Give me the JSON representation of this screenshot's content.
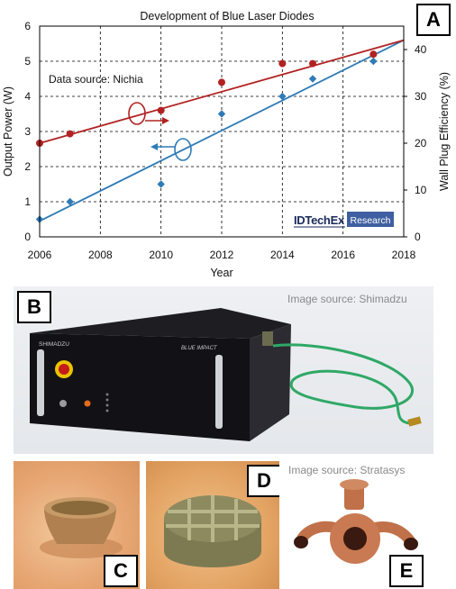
{
  "panels": {
    "a": {
      "label": "A"
    },
    "b": {
      "label": "B",
      "source": "Image source: Shimadzu",
      "device": {
        "brand": "SHIMADZU",
        "model": "BLUE IMPACT"
      }
    },
    "c": {
      "label": "C"
    },
    "d": {
      "label": "D"
    },
    "e": {
      "label": "E",
      "source": "Image source: Stratasys"
    }
  },
  "chart_data": {
    "type": "line",
    "title": "Development of Blue Laser Diodes",
    "xlabel": "Year",
    "ylabel": "Output Power (W)",
    "y2label": "Wall Plug Efficiency (%)",
    "xlim": [
      2006,
      2018
    ],
    "ylim": [
      0,
      6
    ],
    "y2lim": [
      0,
      45
    ],
    "xticks": [
      "2006",
      "2008",
      "2010",
      "2012",
      "2014",
      "2016",
      "2018"
    ],
    "yticks": [
      "0",
      "1",
      "2",
      "3",
      "4",
      "5",
      "6"
    ],
    "y2ticks": [
      "0",
      "10",
      "20",
      "30",
      "40"
    ],
    "grid": true,
    "annotation": "Data source: Nichia",
    "logo": {
      "brand": "IDTechEx",
      "tag": "Research"
    },
    "series": [
      {
        "axis": "left",
        "color": "#2e7bb6",
        "markers": [
          {
            "x": 2006,
            "y": 0.5
          },
          {
            "x": 2007,
            "y": 1.0
          },
          {
            "x": 2010,
            "y": 1.5
          },
          {
            "x": 2012,
            "y": 3.5
          },
          {
            "x": 2014,
            "y": 4.0
          },
          {
            "x": 2015,
            "y": 4.5
          },
          {
            "x": 2017,
            "y": 5.0
          }
        ],
        "trend": [
          {
            "x": 2006,
            "y": 0.45
          },
          {
            "x": 2018,
            "y": 5.6
          }
        ]
      },
      {
        "axis": "right",
        "color": "#b22222",
        "markers": [
          {
            "x": 2006,
            "y": 20
          },
          {
            "x": 2007,
            "y": 22
          },
          {
            "x": 2010,
            "y": 27
          },
          {
            "x": 2012,
            "y": 33
          },
          {
            "x": 2014,
            "y": 37
          },
          {
            "x": 2015,
            "y": 37
          },
          {
            "x": 2017,
            "y": 39
          }
        ],
        "trend": [
          {
            "x": 2006,
            "y": 20
          },
          {
            "x": 2018,
            "y": 42
          }
        ]
      }
    ]
  }
}
